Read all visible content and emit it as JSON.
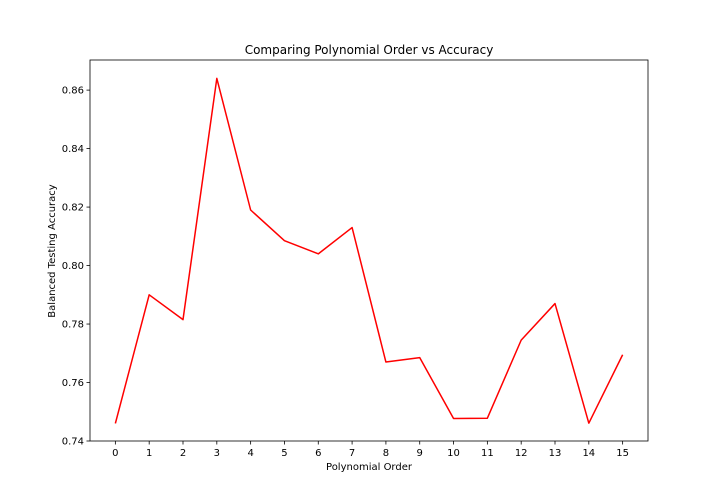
{
  "chart_data": {
    "type": "line",
    "title": "Comparing Polynomial Order vs Accuracy",
    "xlabel": "Polynomial Order",
    "ylabel": "Balanced Testing Accuracy",
    "x": [
      0,
      1,
      2,
      3,
      4,
      5,
      6,
      7,
      8,
      9,
      10,
      11,
      12,
      13,
      14,
      15
    ],
    "series": [
      {
        "values": [
          0.746,
          0.79,
          0.7815,
          0.864,
          0.819,
          0.8085,
          0.804,
          0.813,
          0.767,
          0.7685,
          0.7477,
          0.7478,
          0.7745,
          0.787,
          0.7461,
          0.7695
        ],
        "color": "#ff0000"
      }
    ],
    "xlim": [
      -0.75,
      15.75
    ],
    "ylim": [
      0.74,
      0.8703
    ],
    "xticks": [
      0,
      1,
      2,
      3,
      4,
      5,
      6,
      7,
      8,
      9,
      10,
      11,
      12,
      13,
      14,
      15
    ],
    "yticks": [
      0.74,
      0.76,
      0.78,
      0.8,
      0.82,
      0.84,
      0.86
    ],
    "ytick_labels": [
      "0.74",
      "0.76",
      "0.78",
      "0.80",
      "0.82",
      "0.84",
      "0.86"
    ],
    "grid": false,
    "legend": "none"
  }
}
